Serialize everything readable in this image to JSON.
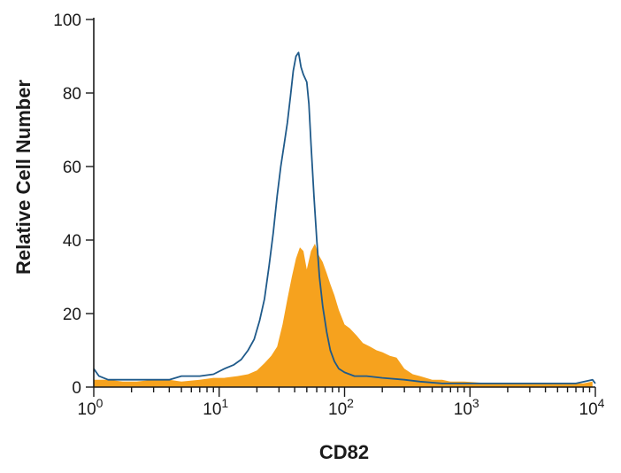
{
  "chart_data": {
    "type": "histogram",
    "title": "",
    "xlabel": "CD82",
    "ylabel": "Relative Cell Number",
    "xscale": "log",
    "xlim": [
      1,
      10000
    ],
    "ylim": [
      0,
      100
    ],
    "x_tick_labels": [
      {
        "base": "10",
        "exp": "0"
      },
      {
        "base": "10",
        "exp": "1"
      },
      {
        "base": "10",
        "exp": "2"
      },
      {
        "base": "10",
        "exp": "3"
      },
      {
        "base": "10",
        "exp": "4"
      }
    ],
    "y_ticks": [
      "0",
      "20",
      "40",
      "60",
      "80",
      "100"
    ],
    "grid": false,
    "legend": "none",
    "series": [
      {
        "style": "filled",
        "color": "#f6a21e",
        "points": [
          [
            1,
            2
          ],
          [
            1.3,
            2
          ],
          [
            1.7,
            1.5
          ],
          [
            2.2,
            1.5
          ],
          [
            3,
            2
          ],
          [
            4,
            2
          ],
          [
            5,
            1.5
          ],
          [
            7,
            2
          ],
          [
            9,
            2.5
          ],
          [
            11,
            2.5
          ],
          [
            14,
            3
          ],
          [
            17,
            3.5
          ],
          [
            20,
            4.5
          ],
          [
            23,
            6.5
          ],
          [
            26,
            8.5
          ],
          [
            29,
            11
          ],
          [
            32,
            17
          ],
          [
            35,
            24
          ],
          [
            38,
            30
          ],
          [
            41,
            35
          ],
          [
            44,
            38
          ],
          [
            47,
            37
          ],
          [
            50,
            32
          ],
          [
            54,
            37
          ],
          [
            58,
            39
          ],
          [
            62,
            36
          ],
          [
            67,
            34
          ],
          [
            72,
            31
          ],
          [
            77,
            28
          ],
          [
            83,
            25
          ],
          [
            90,
            21
          ],
          [
            100,
            17
          ],
          [
            110,
            16
          ],
          [
            125,
            14
          ],
          [
            140,
            12
          ],
          [
            160,
            11
          ],
          [
            180,
            10
          ],
          [
            200,
            9.5
          ],
          [
            230,
            8.5
          ],
          [
            260,
            8
          ],
          [
            300,
            5
          ],
          [
            350,
            3.5
          ],
          [
            400,
            3
          ],
          [
            500,
            2
          ],
          [
            600,
            2
          ],
          [
            700,
            1.5
          ],
          [
            900,
            1.5
          ],
          [
            1500,
            1
          ],
          [
            2500,
            1
          ],
          [
            4000,
            1
          ],
          [
            6000,
            1
          ],
          [
            8000,
            1
          ],
          [
            9500,
            1.5
          ]
        ]
      },
      {
        "style": "line",
        "color": "#1f5a8a",
        "points": [
          [
            1,
            5
          ],
          [
            1.1,
            3
          ],
          [
            1.3,
            2
          ],
          [
            1.7,
            2
          ],
          [
            2.2,
            2
          ],
          [
            3,
            2
          ],
          [
            4,
            2
          ],
          [
            5,
            3
          ],
          [
            7,
            3
          ],
          [
            9,
            3.5
          ],
          [
            11,
            5
          ],
          [
            13,
            6
          ],
          [
            15,
            7.5
          ],
          [
            17,
            10
          ],
          [
            19,
            13
          ],
          [
            21,
            18
          ],
          [
            23,
            24
          ],
          [
            25,
            33
          ],
          [
            27,
            42
          ],
          [
            29,
            52
          ],
          [
            31,
            60
          ],
          [
            33,
            66
          ],
          [
            35,
            72
          ],
          [
            37,
            79
          ],
          [
            39,
            86
          ],
          [
            41,
            90
          ],
          [
            43,
            91
          ],
          [
            45,
            87
          ],
          [
            47,
            85
          ],
          [
            50,
            83
          ],
          [
            52,
            77
          ],
          [
            54,
            66
          ],
          [
            57,
            52
          ],
          [
            60,
            40
          ],
          [
            63,
            30
          ],
          [
            67,
            22
          ],
          [
            72,
            15
          ],
          [
            77,
            10
          ],
          [
            83,
            7
          ],
          [
            90,
            5
          ],
          [
            100,
            4
          ],
          [
            120,
            3
          ],
          [
            150,
            3
          ],
          [
            200,
            2.5
          ],
          [
            300,
            2
          ],
          [
            400,
            1.5
          ],
          [
            600,
            1
          ],
          [
            1000,
            1
          ],
          [
            2000,
            1
          ],
          [
            4000,
            1
          ],
          [
            7000,
            1
          ],
          [
            9500,
            2
          ],
          [
            10000,
            1
          ]
        ]
      }
    ]
  }
}
